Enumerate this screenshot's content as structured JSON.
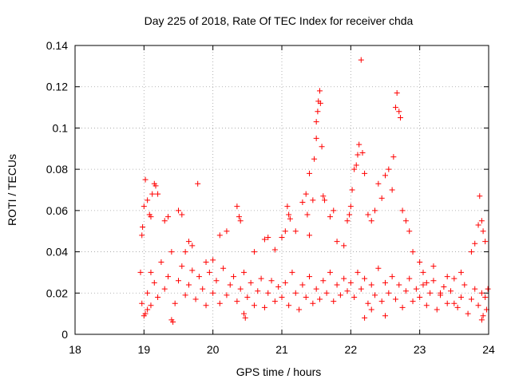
{
  "chart_data": {
    "type": "scatter",
    "title": "Day 225 of 2018, Rate Of TEC Index for receiver chda",
    "xlabel": "GPS time / hours",
    "ylabel": "ROTI / TECUs",
    "xlim": [
      18,
      24
    ],
    "ylim": [
      0,
      0.14
    ],
    "x_ticks": [
      "18",
      "19",
      "20",
      "21",
      "22",
      "23",
      "24"
    ],
    "y_ticks": [
      "0",
      "0.02",
      "0.04",
      "0.06",
      "0.08",
      "0.1",
      "0.12",
      "0.14"
    ],
    "grid": true,
    "marker": "+",
    "color": "#ff0000",
    "points": [
      [
        18.95,
        0.03
      ],
      [
        18.97,
        0.048
      ],
      [
        18.98,
        0.052
      ],
      [
        19.0,
        0.062
      ],
      [
        19.02,
        0.075
      ],
      [
        19.05,
        0.065
      ],
      [
        19.08,
        0.058
      ],
      [
        19.1,
        0.057
      ],
      [
        19.12,
        0.068
      ],
      [
        19.15,
        0.073
      ],
      [
        19.17,
        0.072
      ],
      [
        19.2,
        0.068
      ],
      [
        19.0,
        0.009
      ],
      [
        19.02,
        0.01
      ],
      [
        19.05,
        0.012
      ],
      [
        18.97,
        0.015
      ],
      [
        19.1,
        0.014
      ],
      [
        19.4,
        0.007
      ],
      [
        19.42,
        0.006
      ],
      [
        19.3,
        0.055
      ],
      [
        19.35,
        0.057
      ],
      [
        19.5,
        0.06
      ],
      [
        19.55,
        0.058
      ],
      [
        19.78,
        0.073
      ],
      [
        19.6,
        0.04
      ],
      [
        19.65,
        0.045
      ],
      [
        19.7,
        0.043
      ],
      [
        19.9,
        0.035
      ],
      [
        20.0,
        0.036
      ],
      [
        20.1,
        0.048
      ],
      [
        20.2,
        0.05
      ],
      [
        20.35,
        0.062
      ],
      [
        20.38,
        0.057
      ],
      [
        20.4,
        0.055
      ],
      [
        20.45,
        0.01
      ],
      [
        20.47,
        0.008
      ],
      [
        20.6,
        0.04
      ],
      [
        20.75,
        0.046
      ],
      [
        20.8,
        0.047
      ],
      [
        20.9,
        0.041
      ],
      [
        21.0,
        0.047
      ],
      [
        21.05,
        0.05
      ],
      [
        21.08,
        0.062
      ],
      [
        21.1,
        0.058
      ],
      [
        21.12,
        0.056
      ],
      [
        21.2,
        0.05
      ],
      [
        21.3,
        0.064
      ],
      [
        21.35,
        0.068
      ],
      [
        21.37,
        0.058
      ],
      [
        21.4,
        0.048
      ],
      [
        21.4,
        0.078
      ],
      [
        21.45,
        0.065
      ],
      [
        21.47,
        0.085
      ],
      [
        21.5,
        0.095
      ],
      [
        21.5,
        0.103
      ],
      [
        21.52,
        0.108
      ],
      [
        21.53,
        0.113
      ],
      [
        21.55,
        0.118
      ],
      [
        21.56,
        0.112
      ],
      [
        21.58,
        0.091
      ],
      [
        21.6,
        0.067
      ],
      [
        21.62,
        0.065
      ],
      [
        21.7,
        0.057
      ],
      [
        21.75,
        0.06
      ],
      [
        21.8,
        0.045
      ],
      [
        21.9,
        0.043
      ],
      [
        21.95,
        0.055
      ],
      [
        21.98,
        0.058
      ],
      [
        22.0,
        0.062
      ],
      [
        22.02,
        0.07
      ],
      [
        22.05,
        0.08
      ],
      [
        22.08,
        0.082
      ],
      [
        22.1,
        0.087
      ],
      [
        22.12,
        0.092
      ],
      [
        22.15,
        0.133
      ],
      [
        22.17,
        0.088
      ],
      [
        22.2,
        0.078
      ],
      [
        22.25,
        0.058
      ],
      [
        22.3,
        0.055
      ],
      [
        22.35,
        0.06
      ],
      [
        22.4,
        0.073
      ],
      [
        22.45,
        0.066
      ],
      [
        22.5,
        0.077
      ],
      [
        22.55,
        0.08
      ],
      [
        22.6,
        0.07
      ],
      [
        22.62,
        0.086
      ],
      [
        22.65,
        0.11
      ],
      [
        22.67,
        0.117
      ],
      [
        22.7,
        0.108
      ],
      [
        22.72,
        0.105
      ],
      [
        22.75,
        0.06
      ],
      [
        22.8,
        0.055
      ],
      [
        22.85,
        0.05
      ],
      [
        22.2,
        0.008
      ],
      [
        22.3,
        0.012
      ],
      [
        22.5,
        0.009
      ],
      [
        22.9,
        0.04
      ],
      [
        23.0,
        0.035
      ],
      [
        23.05,
        0.03
      ],
      [
        23.1,
        0.025
      ],
      [
        23.2,
        0.033
      ],
      [
        23.3,
        0.02
      ],
      [
        23.4,
        0.028
      ],
      [
        23.5,
        0.015
      ],
      [
        23.6,
        0.03
      ],
      [
        23.75,
        0.04
      ],
      [
        23.8,
        0.044
      ],
      [
        23.85,
        0.053
      ],
      [
        23.87,
        0.067
      ],
      [
        23.9,
        0.055
      ],
      [
        23.92,
        0.05
      ],
      [
        23.95,
        0.045
      ],
      [
        23.9,
        0.007
      ],
      [
        23.92,
        0.009
      ],
      [
        23.97,
        0.012
      ],
      [
        23.99,
        0.022
      ],
      [
        19.05,
        0.02
      ],
      [
        19.1,
        0.03
      ],
      [
        19.15,
        0.025
      ],
      [
        19.2,
        0.018
      ],
      [
        19.25,
        0.035
      ],
      [
        19.3,
        0.022
      ],
      [
        19.35,
        0.028
      ],
      [
        19.4,
        0.04
      ],
      [
        19.45,
        0.015
      ],
      [
        19.5,
        0.026
      ],
      [
        19.55,
        0.033
      ],
      [
        19.6,
        0.019
      ],
      [
        19.65,
        0.024
      ],
      [
        19.7,
        0.031
      ],
      [
        19.75,
        0.017
      ],
      [
        19.8,
        0.028
      ],
      [
        19.85,
        0.022
      ],
      [
        19.9,
        0.014
      ],
      [
        19.95,
        0.03
      ],
      [
        20.0,
        0.02
      ],
      [
        20.05,
        0.026
      ],
      [
        20.1,
        0.015
      ],
      [
        20.15,
        0.032
      ],
      [
        20.2,
        0.019
      ],
      [
        20.25,
        0.024
      ],
      [
        20.3,
        0.028
      ],
      [
        20.35,
        0.016
      ],
      [
        20.4,
        0.022
      ],
      [
        20.45,
        0.03
      ],
      [
        20.5,
        0.018
      ],
      [
        20.55,
        0.025
      ],
      [
        20.6,
        0.014
      ],
      [
        20.65,
        0.021
      ],
      [
        20.7,
        0.027
      ],
      [
        20.75,
        0.013
      ],
      [
        20.8,
        0.02
      ],
      [
        20.85,
        0.026
      ],
      [
        20.9,
        0.016
      ],
      [
        20.95,
        0.023
      ],
      [
        21.0,
        0.018
      ],
      [
        21.05,
        0.025
      ],
      [
        21.1,
        0.014
      ],
      [
        21.15,
        0.03
      ],
      [
        21.2,
        0.02
      ],
      [
        21.25,
        0.012
      ],
      [
        21.3,
        0.024
      ],
      [
        21.35,
        0.018
      ],
      [
        21.4,
        0.028
      ],
      [
        21.45,
        0.015
      ],
      [
        21.5,
        0.022
      ],
      [
        21.55,
        0.017
      ],
      [
        21.6,
        0.026
      ],
      [
        21.65,
        0.02
      ],
      [
        21.7,
        0.03
      ],
      [
        21.75,
        0.016
      ],
      [
        21.8,
        0.024
      ],
      [
        21.85,
        0.019
      ],
      [
        21.9,
        0.027
      ],
      [
        21.95,
        0.021
      ],
      [
        22.0,
        0.025
      ],
      [
        22.05,
        0.018
      ],
      [
        22.1,
        0.03
      ],
      [
        22.15,
        0.022
      ],
      [
        22.2,
        0.027
      ],
      [
        22.25,
        0.015
      ],
      [
        22.3,
        0.024
      ],
      [
        22.35,
        0.019
      ],
      [
        22.4,
        0.032
      ],
      [
        22.45,
        0.016
      ],
      [
        22.5,
        0.025
      ],
      [
        22.55,
        0.02
      ],
      [
        22.6,
        0.028
      ],
      [
        22.65,
        0.017
      ],
      [
        22.7,
        0.024
      ],
      [
        22.75,
        0.013
      ],
      [
        22.8,
        0.021
      ],
      [
        22.85,
        0.027
      ],
      [
        22.9,
        0.016
      ],
      [
        22.95,
        0.022
      ],
      [
        23.0,
        0.018
      ],
      [
        23.05,
        0.024
      ],
      [
        23.1,
        0.014
      ],
      [
        23.15,
        0.02
      ],
      [
        23.2,
        0.026
      ],
      [
        23.25,
        0.012
      ],
      [
        23.3,
        0.019
      ],
      [
        23.35,
        0.023
      ],
      [
        23.4,
        0.015
      ],
      [
        23.45,
        0.021
      ],
      [
        23.5,
        0.027
      ],
      [
        23.55,
        0.013
      ],
      [
        23.6,
        0.018
      ],
      [
        23.65,
        0.024
      ],
      [
        23.7,
        0.01
      ],
      [
        23.75,
        0.017
      ],
      [
        23.8,
        0.022
      ],
      [
        23.85,
        0.014
      ],
      [
        23.9,
        0.02
      ],
      [
        23.95,
        0.018
      ]
    ]
  }
}
